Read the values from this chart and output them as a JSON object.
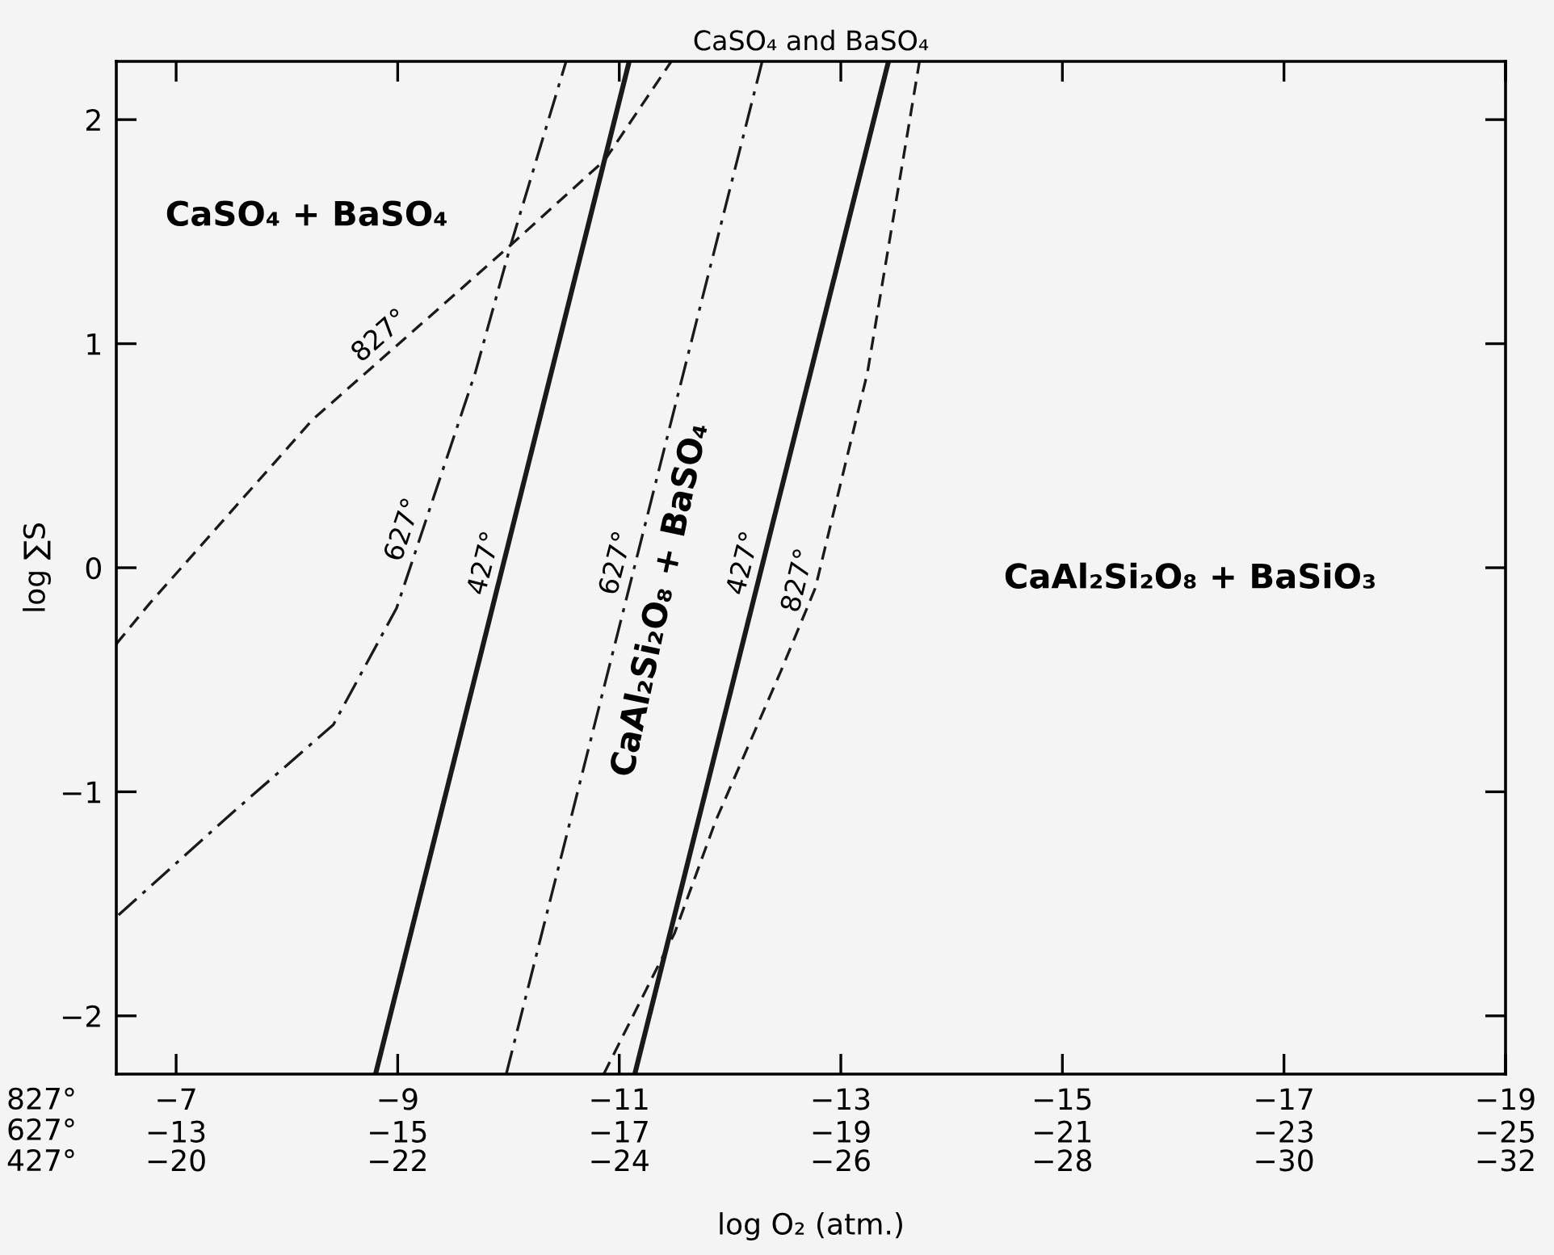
{
  "chart_data": {
    "type": "line",
    "title": "CaSO₄ and BaSO₄",
    "xlabel": "log O₂ (atm.)",
    "ylabel": "log ∑S",
    "xlim": [
      -6.46,
      -19
    ],
    "ylim": [
      -2.26,
      2.26
    ],
    "xticks": [
      {
        "value": -7,
        "label": "−7"
      },
      {
        "value": -9,
        "label": "−9"
      },
      {
        "value": -11,
        "label": "−11"
      },
      {
        "value": -13,
        "label": "−13"
      },
      {
        "value": -15,
        "label": "−15"
      },
      {
        "value": -17,
        "label": "−17"
      },
      {
        "value": -19,
        "label": "−19"
      }
    ],
    "x2lim": [
      -12.46,
      -25
    ],
    "x2ticks": [
      {
        "value": -13,
        "label": "−13"
      },
      {
        "value": -15,
        "label": "−15"
      },
      {
        "value": -17,
        "label": "−17"
      },
      {
        "value": -19,
        "label": "−19"
      },
      {
        "value": -21,
        "label": "−21"
      },
      {
        "value": -23,
        "label": "−23"
      },
      {
        "value": -25,
        "label": "−25"
      }
    ],
    "yticks": [
      {
        "value": -2,
        "label": "−2"
      },
      {
        "value": -1,
        "label": "−1"
      },
      0,
      1,
      2
    ],
    "series": [
      {
        "name": "827°",
        "color": "#1a1a1a",
        "line_style": "dashed",
        "x": [
          -6.46,
          -6.76,
          -8.23,
          -10.02,
          -10.87,
          -11.47
        ],
        "values": [
          -0.34,
          -0.16,
          0.66,
          1.44,
          1.82,
          2.26
        ]
      },
      {
        "name": "627°",
        "color": "#1a1a1a",
        "line_style": "dashdot",
        "x": [
          -6.48,
          -7.47,
          -8.42,
          -8.99,
          -9.7,
          -10.02,
          -10.52
        ],
        "values": [
          -1.55,
          -1.11,
          -0.7,
          -0.18,
          0.87,
          1.44,
          2.26
        ]
      },
      {
        "name": "427°",
        "color": "#1a1a1a",
        "line_style": "solid",
        "x": [
          -8.8,
          -11.09
        ],
        "values": [
          -2.26,
          2.26
        ]
      },
      {
        "name": "627°",
        "color": "#1a1a1a",
        "line_style": "dashdot",
        "x": [
          -9.98,
          -12.29
        ],
        "values": [
          -2.26,
          2.26
        ]
      },
      {
        "name": "427°",
        "color": "#1a1a1a",
        "line_style": "solid",
        "x": [
          -11.14,
          -13.43
        ],
        "values": [
          -2.26,
          2.26
        ]
      },
      {
        "name": "827°",
        "color": "#1a1a1a",
        "line_style": "dashed",
        "x": [
          -10.86,
          -11.5,
          -11.87,
          -12.46,
          -12.77,
          -13.24,
          -13.71
        ],
        "values": [
          -2.26,
          -1.63,
          -1.13,
          -0.46,
          -0.09,
          0.87,
          2.26
        ]
      }
    ],
    "annotations": [
      "CaSO₄ + BaSO₄",
      "CaAl₂Si₂O₈ + BaSO₄",
      "CaAl₂Si₂O₈ + BaSiO₃",
      "827°\n627°\n427°",
      "−20",
      "−22",
      "−24",
      "−26",
      "−28",
      "−30",
      "−32"
    ]
  }
}
